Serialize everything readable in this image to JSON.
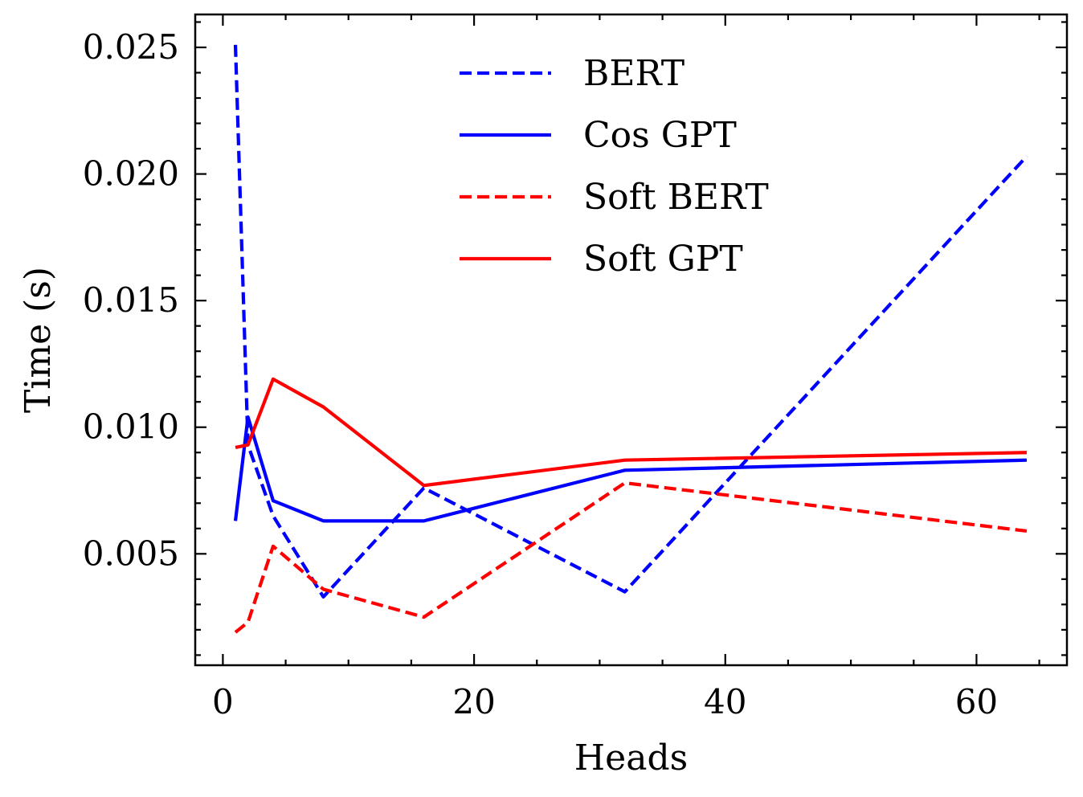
{
  "chart_data": {
    "type": "line",
    "title": "",
    "xlabel": "Heads",
    "ylabel": "Time (s)",
    "xlim": [
      -2.2,
      67.2
    ],
    "ylim": [
      0.0006,
      0.0263
    ],
    "x_ticks": [
      0,
      20,
      40,
      60
    ],
    "x_tick_labels": [
      "0",
      "20",
      "40",
      "60"
    ],
    "y_ticks": [
      0.005,
      0.01,
      0.015,
      0.02,
      0.025
    ],
    "y_tick_labels": [
      "0.005",
      "0.010",
      "0.015",
      "0.020",
      "0.025"
    ],
    "grid": false,
    "legend_position": "top-center",
    "series": [
      {
        "name": "BERT",
        "color": "#0000ff",
        "dash": "dashed",
        "x": [
          1,
          2,
          4,
          8,
          16,
          32,
          64
        ],
        "y": [
          0.0251,
          0.0093,
          0.0065,
          0.0033,
          0.0076,
          0.0035,
          0.0207
        ]
      },
      {
        "name": "Cos GPT",
        "color": "#0000ff",
        "dash": "solid",
        "x": [
          1,
          2,
          4,
          8,
          16,
          32,
          64
        ],
        "y": [
          0.0063,
          0.0104,
          0.0071,
          0.0063,
          0.0063,
          0.0083,
          0.0087
        ]
      },
      {
        "name": "Soft BERT",
        "color": "#ff0000",
        "dash": "dashed",
        "x": [
          1,
          2,
          4,
          8,
          16,
          32,
          64
        ],
        "y": [
          0.0019,
          0.0023,
          0.0053,
          0.0036,
          0.0025,
          0.0078,
          0.0059
        ]
      },
      {
        "name": "Soft GPT",
        "color": "#ff0000",
        "dash": "solid",
        "x": [
          1,
          2,
          4,
          8,
          16,
          32,
          64
        ],
        "y": [
          0.0092,
          0.0093,
          0.0119,
          0.0108,
          0.0077,
          0.0087,
          0.009
        ]
      }
    ]
  }
}
